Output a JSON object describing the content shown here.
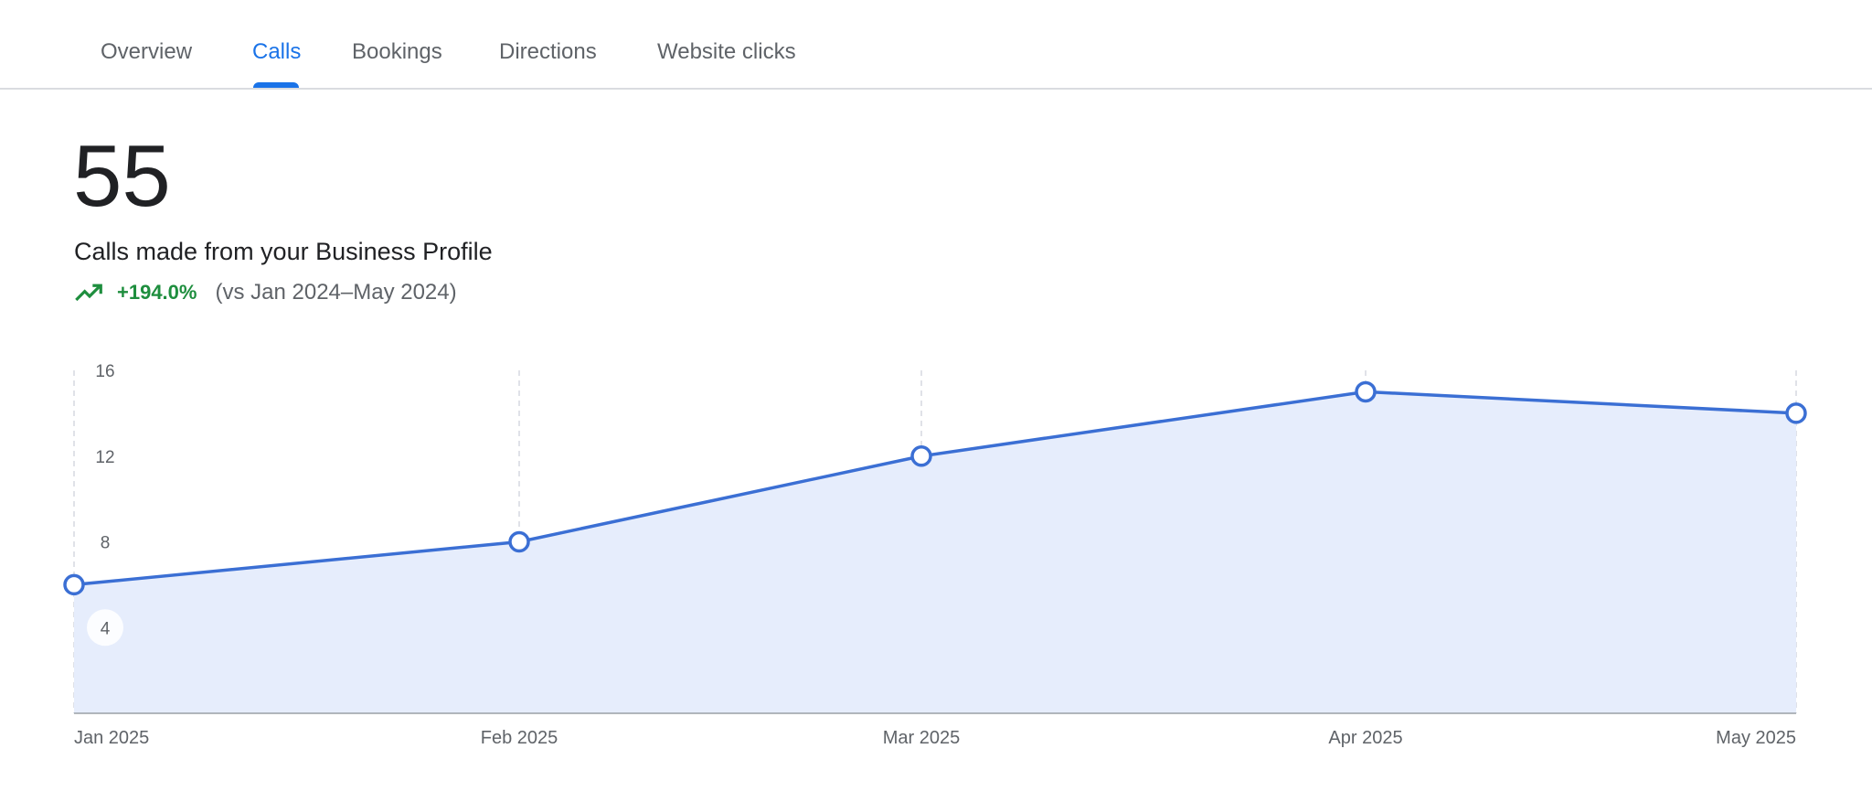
{
  "tabs": [
    {
      "label": "Overview",
      "active": false
    },
    {
      "label": "Calls",
      "active": true
    },
    {
      "label": "Bookings",
      "active": false
    },
    {
      "label": "Directions",
      "active": false
    },
    {
      "label": "Website clicks",
      "active": false
    }
  ],
  "summary": {
    "total": "55",
    "description": "Calls made from your Business Profile",
    "change": "+194.0%",
    "comparison": "(vs Jan 2024–May 2024)",
    "trend_icon": "trending-up-icon"
  },
  "colors": {
    "accent": "#1a73e8",
    "line": "#3b6fd4",
    "area": "#e6edfc",
    "positive": "#1e8e3e"
  },
  "chart_data": {
    "type": "area",
    "categories": [
      "Jan 2025",
      "Feb 2025",
      "Mar 2025",
      "Apr 2025",
      "May 2025"
    ],
    "values": [
      6,
      8,
      12,
      15,
      14
    ],
    "yticks": [
      4,
      8,
      12,
      16
    ],
    "ylim": [
      0,
      16
    ],
    "grid": "vertical dashed",
    "title": "",
    "xlabel": "",
    "ylabel": ""
  }
}
